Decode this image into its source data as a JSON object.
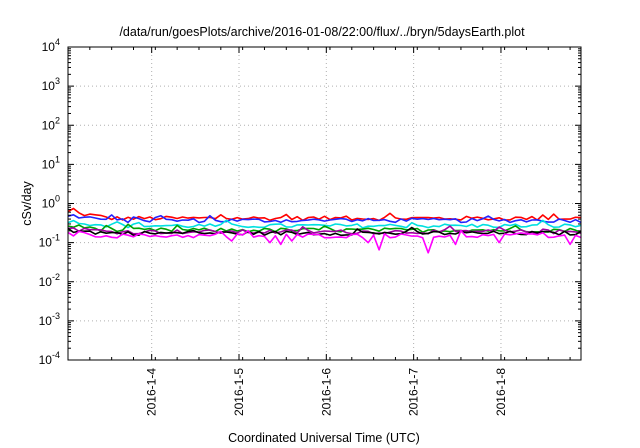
{
  "chart_data": {
    "type": "line",
    "title": "/data/run/goesPlots/archive/2016-01-08/22:00/flux/../bryn/5daysEarth.plot",
    "xlabel": "Coordinated Universal Time (UTC)",
    "ylabel": "cSv/day",
    "yscale": "log",
    "ylim": [
      0.0001,
      10000
    ],
    "y_ticks": [
      {
        "base": "10",
        "exp": "-4"
      },
      {
        "base": "10",
        "exp": "-3"
      },
      {
        "base": "10",
        "exp": "-2"
      },
      {
        "base": "10",
        "exp": "-1"
      },
      {
        "base": "10",
        "exp": "0"
      },
      {
        "base": "10",
        "exp": "1"
      },
      {
        "base": "10",
        "exp": "2"
      },
      {
        "base": "10",
        "exp": "3"
      },
      {
        "base": "10",
        "exp": "4"
      }
    ],
    "xlim": [
      "2016-01-03T01:00",
      "2016-01-08T22:00"
    ],
    "x_ticks": [
      "2016-1-4",
      "2016-1-5",
      "2016-1-6",
      "2016-1-7",
      "2016-1-8"
    ],
    "grid": true,
    "series": [
      {
        "color": "#ff0000",
        "level": 0.42,
        "x_start": "2016-01-03T01:00",
        "start_level": 0.6,
        "dips": []
      },
      {
        "color": "#2222ff",
        "level": 0.37,
        "x_start": "2016-01-03T01:00",
        "start_level": 0.5,
        "dips": []
      },
      {
        "color": "#00e0e0",
        "level": 0.27,
        "x_start": "2016-01-03T01:00",
        "start_level": 0.35,
        "dips": []
      },
      {
        "color": "#00a000",
        "level": 0.21,
        "x_start": "2016-01-03T01:00",
        "start_level": 0.27,
        "dips": []
      },
      {
        "color": "#a000a0",
        "level": 0.19,
        "x_start": "2016-01-03T01:00",
        "start_level": 0.23,
        "dips": []
      },
      {
        "color": "#000000",
        "level": 0.175,
        "x_start": "2016-01-03T01:00",
        "start_level": 0.2,
        "dips": []
      },
      {
        "color": "#ff00ff",
        "level": 0.15,
        "x_start": "2016-01-03T01:00",
        "start_level": 0.17,
        "dips": [
          {
            "x": "2016-01-04T22:00",
            "y": 0.11
          },
          {
            "x": "2016-01-05T08:00",
            "y": 0.1
          },
          {
            "x": "2016-01-05T12:00",
            "y": 0.09
          },
          {
            "x": "2016-01-05T14:00",
            "y": 0.11
          },
          {
            "x": "2016-01-06T12:00",
            "y": 0.1
          },
          {
            "x": "2016-01-06T14:00",
            "y": 0.065
          },
          {
            "x": "2016-01-07T04:00",
            "y": 0.055
          },
          {
            "x": "2016-01-07T12:00",
            "y": 0.09
          },
          {
            "x": "2016-01-08T00:00",
            "y": 0.1
          },
          {
            "x": "2016-01-08T19:00",
            "y": 0.09
          }
        ]
      }
    ]
  }
}
